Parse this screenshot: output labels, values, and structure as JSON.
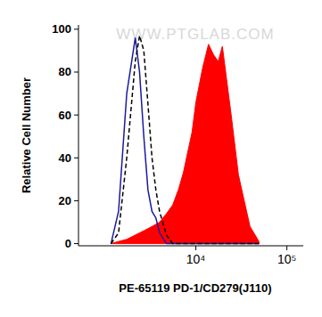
{
  "chart_data": {
    "type": "line",
    "x_label": "PE-65119 PD-1/CD279(J110)",
    "y_label": "Relative Cell Number",
    "annotations": [
      "WWW.PTGLAB.COM"
    ],
    "x": [
      -3000,
      -2000,
      -1000,
      0,
      500,
      1000,
      1500,
      2000,
      2500,
      3000,
      4000,
      5000,
      6000,
      7000,
      8000,
      9000,
      10000,
      12000,
      14000,
      16000,
      18000,
      20000,
      25000,
      30000,
      40000,
      50000
    ],
    "series": [
      {
        "type": "area",
        "color": "#ff0000",
        "line_style": "solid",
        "values": [
          0,
          1,
          2,
          4,
          5,
          6,
          7,
          8,
          9,
          10,
          14,
          18,
          25,
          33,
          43,
          52,
          66,
          82,
          93,
          88,
          85,
          92,
          60,
          32,
          8,
          1
        ]
      },
      {
        "type": "line",
        "color": "#1a1aa0",
        "line_style": "solid",
        "values": [
          0,
          15,
          70,
          96,
          80,
          50,
          25,
          15,
          12,
          5,
          0,
          0,
          0,
          0,
          0,
          0,
          0,
          0,
          0,
          0,
          0,
          0,
          0,
          0,
          0,
          0
        ]
      },
      {
        "type": "line",
        "color": "#000000",
        "line_style": "dashed",
        "values": [
          0,
          5,
          40,
          85,
          97,
          90,
          65,
          40,
          25,
          15,
          4,
          0,
          0,
          0,
          0,
          0,
          0,
          0,
          0,
          0,
          0,
          0,
          0,
          0,
          0,
          0
        ]
      }
    ],
    "xlim": [
      -9000,
      150000
    ],
    "xticks": [
      {
        "value": 10000,
        "label": "10⁴"
      },
      {
        "value": 100000,
        "label": "10⁵"
      }
    ],
    "ylim": [
      -1,
      102
    ],
    "yticks": [
      0,
      20,
      40,
      60,
      80,
      100
    ],
    "grid": false
  }
}
